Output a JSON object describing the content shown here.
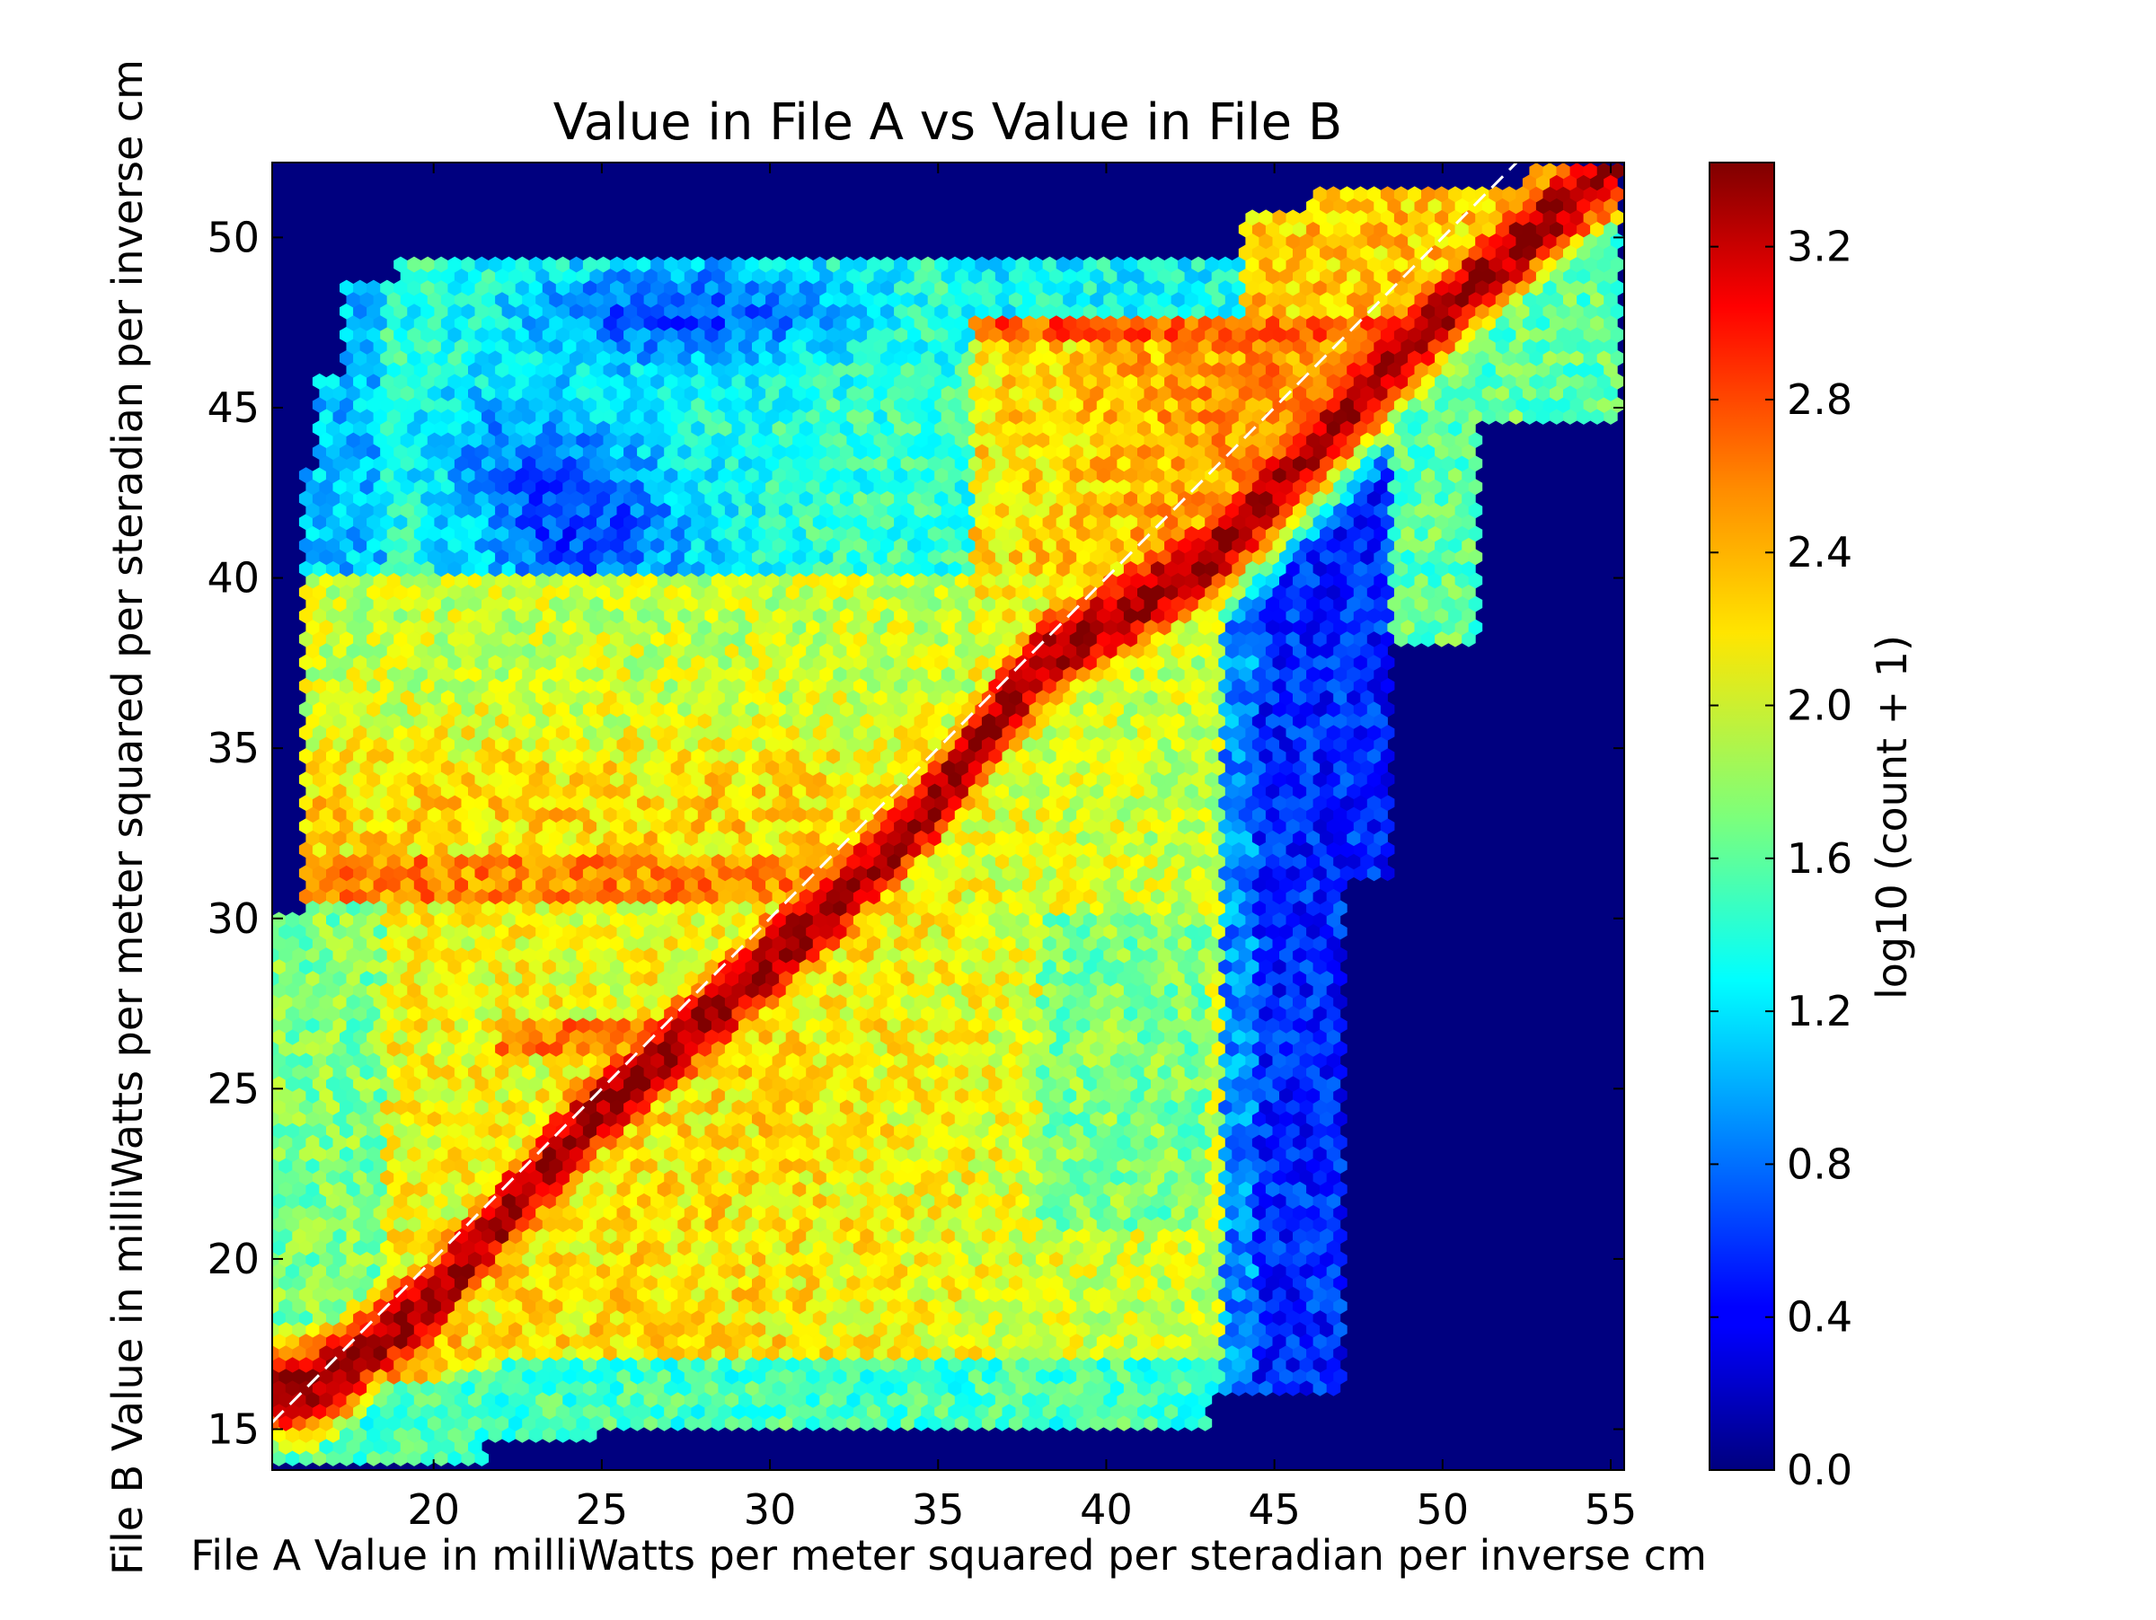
{
  "chart_data": {
    "type": "heatmap",
    "subtype": "hexbin",
    "title": "Value in File A vs Value in File B",
    "xlabel": "File A Value in milliWatts per meter squared per steradian per inverse cm",
    "ylabel": "File B Value in milliWatts per meter squared per steradian per inverse cm",
    "xlim": [
      15.2,
      55.4
    ],
    "ylim": [
      13.8,
      52.2
    ],
    "xticks": [
      20,
      25,
      30,
      35,
      40,
      45,
      50,
      55
    ],
    "yticks": [
      15,
      20,
      25,
      30,
      35,
      40,
      45,
      50
    ],
    "grid": false,
    "background_color": "#00007f",
    "colormap": "jet",
    "colorbar": {
      "label": "log10 (count + 1)",
      "range": [
        0.0,
        3.42
      ],
      "ticks": [
        "0.0",
        "0.4",
        "0.8",
        "1.2",
        "1.6",
        "2.0",
        "2.4",
        "2.8",
        "3.2"
      ]
    },
    "reference_line": {
      "from": [
        15.2,
        15.2
      ],
      "to": [
        52.2,
        52.2
      ],
      "color": "#ffffff",
      "style": "dashed"
    },
    "density_model": {
      "ridge": [
        [
          16.5,
          16.2
        ],
        [
          20,
          18.9
        ],
        [
          24.5,
          24.0
        ],
        [
          28,
          27.0
        ],
        [
          32,
          30.5
        ],
        [
          35,
          33.5
        ],
        [
          38,
          37.5
        ],
        [
          43,
          40.5
        ],
        [
          49.5,
          47.3
        ],
        [
          53,
          50.5
        ],
        [
          55,
          52.0
        ]
      ],
      "ridge_peak": 3.35,
      "regions": [
        {
          "name": "upper-left",
          "x": [
            16.5,
            33.5
          ],
          "y_min_at": [
            [
              16,
              40
            ],
            [
              30,
              40
            ],
            [
              33,
              40
            ]
          ],
          "y_max_at": [
            [
              17.5,
              45
            ],
            [
              19,
              49.5
            ],
            [
              33,
              49.5
            ]
          ],
          "level": 1.5,
          "holes": [
            [
              [
                24,
                41
              ],
              4,
              3.5,
              0.7
            ],
            [
              [
                22,
                47.5
              ],
              6,
              2,
              0.8
            ]
          ]
        },
        {
          "name": "mid-band-left",
          "x": [
            16.5,
            35
          ],
          "y": [
            30.5,
            40
          ],
          "level": 2.0
        },
        {
          "name": "band-31",
          "x": [
            16.5,
            32
          ],
          "y": [
            30.5,
            31.8
          ],
          "level": 2.6
        },
        {
          "name": "lower-right",
          "x": [
            24,
            44
          ],
          "y": [
            16,
            30
          ],
          "level": 2.2
        },
        {
          "name": "right-blue-strip",
          "x": [
            43.5,
            47.5
          ],
          "y": [
            17,
            33
          ],
          "level": 0.6
        },
        {
          "name": "upper-right",
          "x": [
            36,
            53
          ],
          "y": [
            40,
            47.5
          ],
          "level": 2.4
        },
        {
          "name": "top-edge",
          "x": [
            44,
            55
          ],
          "y": [
            47.5,
            52.2
          ],
          "level": 2.2
        },
        {
          "name": "mid-right",
          "x": [
            36,
            49
          ],
          "y": [
            33,
            40
          ],
          "level": 1.9
        }
      ]
    }
  }
}
